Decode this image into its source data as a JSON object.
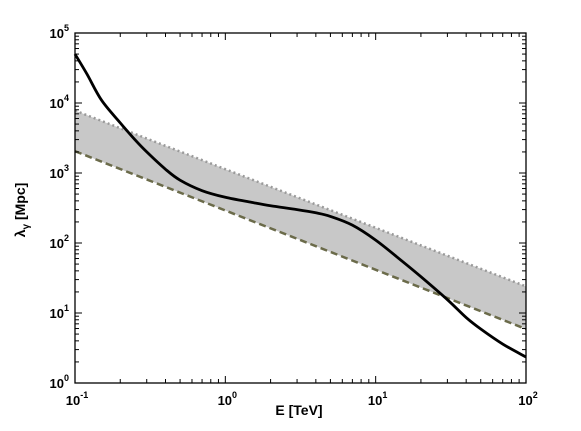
{
  "chart_data": {
    "type": "line",
    "xscale": "log",
    "yscale": "log",
    "xlim": [
      0.1,
      100
    ],
    "ylim": [
      1,
      100000
    ],
    "xlabel": "E [TeV]",
    "ylabel": "λγ [Mpc]",
    "ylabel_main": "λ",
    "ylabel_sub": "γ",
    "ylabel_rest": " [Mpc]",
    "x_ticks": [
      {
        "base": "10",
        "exp": "-1"
      },
      {
        "base": "10",
        "exp": "0"
      },
      {
        "base": "10",
        "exp": "1"
      },
      {
        "base": "10",
        "exp": "2"
      }
    ],
    "y_ticks": [
      {
        "base": "10",
        "exp": "0"
      },
      {
        "base": "10",
        "exp": "1"
      },
      {
        "base": "10",
        "exp": "2"
      },
      {
        "base": "10",
        "exp": "3"
      },
      {
        "base": "10",
        "exp": "4"
      },
      {
        "base": "10",
        "exp": "5"
      }
    ],
    "band": {
      "upper": {
        "x": [
          0.1,
          100
        ],
        "y": [
          7800,
          24
        ]
      },
      "lower": {
        "x": [
          0.1,
          100
        ],
        "y": [
          2050,
          5.9
        ]
      },
      "fill": "#c8c8c8",
      "upper_color": "#9a9a9a",
      "lower_color": "#6b6b4a"
    },
    "series": [
      {
        "x": [
          0.1,
          0.12,
          0.15,
          0.2,
          0.25,
          0.3,
          0.4,
          0.5,
          0.7,
          1,
          1.5,
          2,
          3,
          4,
          5,
          7,
          10,
          15,
          20,
          30,
          40,
          50,
          70,
          100
        ],
        "y": [
          50000,
          26000,
          11000,
          5200,
          3000,
          2000,
          1130,
          790,
          560,
          450,
          380,
          340,
          300,
          270,
          240,
          180,
          110,
          55,
          33,
          15.5,
          8.6,
          5.9,
          3.6,
          2.35
        ],
        "color": "#000000"
      }
    ]
  }
}
